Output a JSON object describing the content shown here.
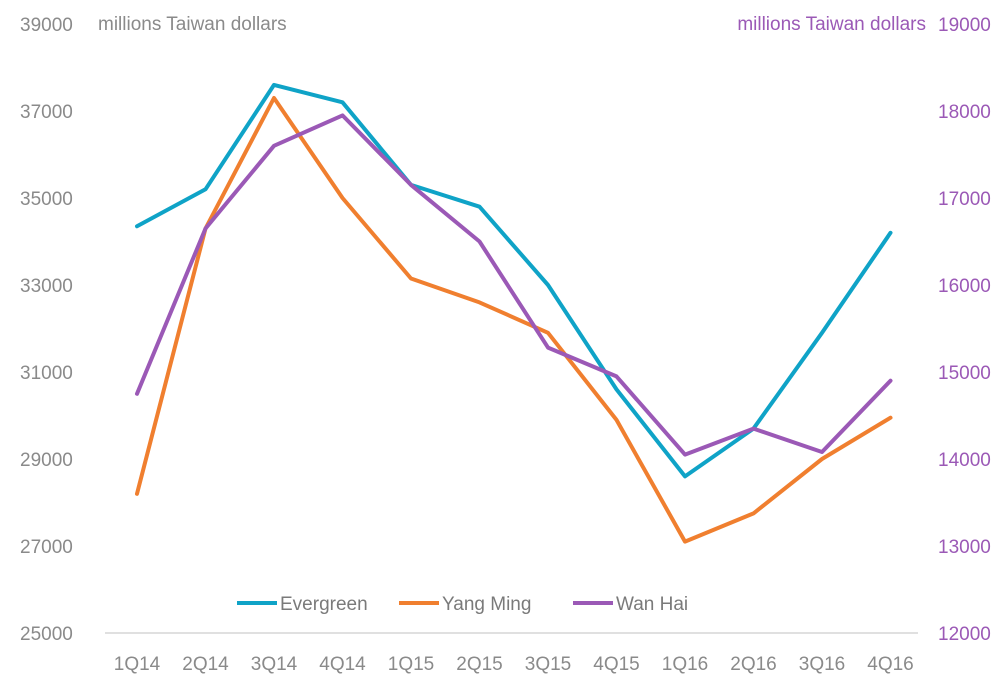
{
  "chart_data": {
    "type": "line",
    "title": "",
    "xlabel": "",
    "categories": [
      "1Q14",
      "2Q14",
      "3Q14",
      "4Q14",
      "1Q15",
      "2Q15",
      "3Q15",
      "4Q15",
      "1Q16",
      "2Q16",
      "3Q16",
      "4Q16"
    ],
    "y_left": {
      "unit_label": "millions Taiwan dollars",
      "range": [
        25000,
        39000
      ],
      "ticks": [
        "25000",
        "27000",
        "29000",
        "31000",
        "33000",
        "35000",
        "37000",
        "39000"
      ]
    },
    "y_right": {
      "unit_label": "millions Taiwan dollars",
      "range": [
        12000,
        19000
      ],
      "ticks": [
        "12000",
        "13000",
        "14000",
        "15000",
        "16000",
        "17000",
        "18000",
        "19000"
      ]
    },
    "series": [
      {
        "name": "Evergreen",
        "axis": "left",
        "color": "#0fa3c7",
        "values": [
          34350,
          35200,
          37600,
          37200,
          35300,
          34800,
          33000,
          30600,
          28600,
          29700,
          31900,
          34200
        ]
      },
      {
        "name": "Yang Ming",
        "axis": "left",
        "color": "#f07f2f",
        "values": [
          28200,
          34300,
          37300,
          35000,
          33150,
          32600,
          31900,
          29900,
          27100,
          27750,
          29000,
          29950
        ]
      },
      {
        "name": "Wan Hai",
        "axis": "right",
        "color": "#9b59b6",
        "values": [
          14750,
          16650,
          17600,
          17950,
          17150,
          16500,
          15280,
          14950,
          14050,
          14350,
          14080,
          14900
        ]
      }
    ],
    "legend_position": "bottom-center",
    "grid": false
  }
}
